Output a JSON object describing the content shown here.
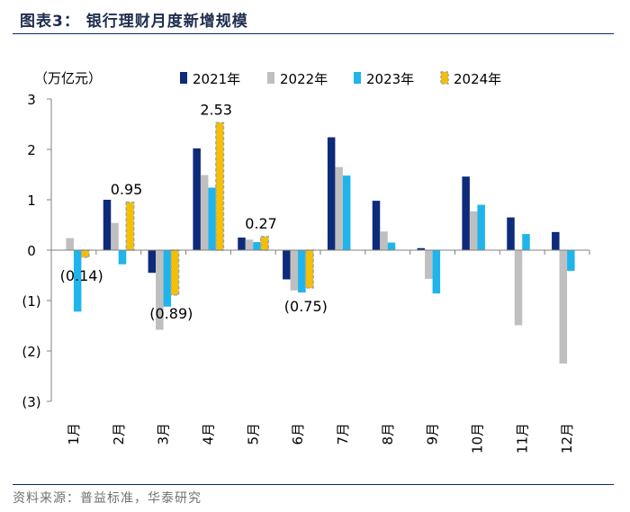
{
  "figure_title": "图表3：  银行理财月度新增规模",
  "source_note": "资料来源：普益标准，华泰研究",
  "colors": {
    "s2021": "#0d2b7a",
    "s2022": "#bfbfbf",
    "s2023": "#1fb4ec",
    "s2024": "#f5c000",
    "s2024_border": "#a6a6a6",
    "rule": "#0a2a66"
  },
  "chart_data": {
    "type": "bar",
    "title": "银行理财月度新增规模",
    "unit_label": "（万亿元）",
    "xlabel": "",
    "ylabel": "（万亿元）",
    "ylim": [
      -3,
      3
    ],
    "y_ticks": [
      3,
      2,
      1,
      0,
      -1,
      -2,
      -3
    ],
    "y_tick_labels": [
      "3",
      "2",
      "1",
      "0",
      "(1)",
      "(2)",
      "(3)"
    ],
    "categories": [
      "1月",
      "2月",
      "3月",
      "4月",
      "5月",
      "6月",
      "7月",
      "8月",
      "9月",
      "10月",
      "11月",
      "12月"
    ],
    "series": [
      {
        "name": "2021年",
        "color_key": "s2021",
        "values": [
          0.0,
          1.0,
          -0.45,
          2.02,
          0.25,
          -0.58,
          2.24,
          0.98,
          0.04,
          1.46,
          0.65,
          0.36
        ]
      },
      {
        "name": "2022年",
        "color_key": "s2022",
        "values": [
          0.24,
          0.54,
          -1.58,
          1.49,
          0.21,
          -0.8,
          1.65,
          0.37,
          -0.57,
          0.77,
          -1.49,
          -2.25
        ]
      },
      {
        "name": "2023年",
        "color_key": "s2023",
        "values": [
          -1.22,
          -0.28,
          -1.12,
          1.24,
          0.16,
          -0.84,
          1.48,
          0.15,
          -0.86,
          0.9,
          0.32,
          -0.41
        ]
      },
      {
        "name": "2024年",
        "color_key": "s2024",
        "dashed_border": true,
        "values": [
          -0.14,
          0.95,
          -0.89,
          2.53,
          0.27,
          -0.75,
          null,
          null,
          null,
          null,
          null,
          null
        ]
      }
    ],
    "annotations": [
      {
        "text": "(0.14)",
        "category": "1月",
        "series": "2024年",
        "value": -0.14
      },
      {
        "text": "0.95",
        "category": "2月",
        "series": "2024年",
        "value": 0.95
      },
      {
        "text": "(0.89)",
        "category": "3月",
        "series": "2024年",
        "value": -0.89
      },
      {
        "text": "2.53",
        "category": "4月",
        "series": "2024年",
        "value": 2.53
      },
      {
        "text": "0.27",
        "category": "5月",
        "series": "2024年",
        "value": 0.27
      },
      {
        "text": "(0.75)",
        "category": "6月",
        "series": "2024年",
        "value": -0.75
      }
    ],
    "legend_position": "top",
    "grid": false
  }
}
